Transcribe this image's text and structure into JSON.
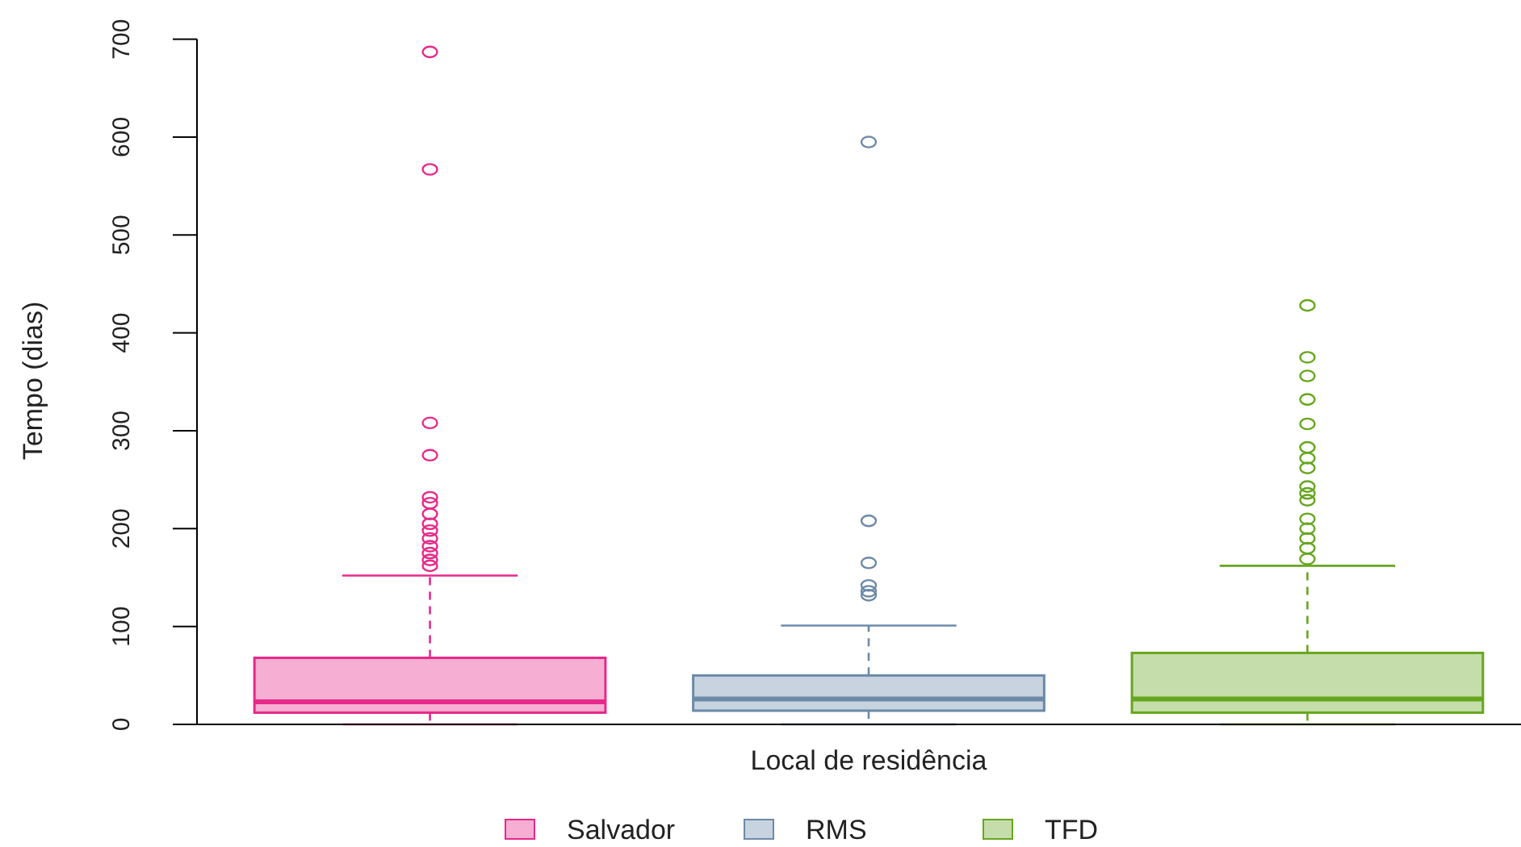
{
  "chart_data": {
    "type": "box",
    "xlabel": "Local de residência",
    "ylabel": "Tempo (dias)",
    "categories": [
      null,
      null,
      null
    ],
    "ylim": [
      0,
      700
    ],
    "yticks": [
      0,
      100,
      200,
      300,
      400,
      500,
      600,
      700
    ],
    "tick_labels": "y",
    "grid": false,
    "legend": "bottom",
    "series": [
      {
        "name": "Salvador",
        "color": "#e7298a",
        "boxes": [
          {
            "low": 0,
            "q1": 12,
            "median": 23,
            "q3": 68,
            "high": 152,
            "outliers": [
              687,
              567,
              308,
              275,
              232,
              226,
              215,
              205,
              198,
              190,
              182,
              175,
              168,
              162
            ]
          },
          null,
          null
        ]
      },
      {
        "name": "RMS",
        "color": "#6c8aa8",
        "boxes": [
          null,
          {
            "low": 0,
            "q1": 14,
            "median": 26,
            "q3": 50,
            "high": 101,
            "outliers": [
              595,
              208,
              165,
              142,
              136,
              132
            ]
          },
          null
        ]
      },
      {
        "name": "TFD",
        "color": "#66a61e",
        "boxes": [
          null,
          null,
          {
            "low": 0,
            "q1": 12,
            "median": 26,
            "q3": 73,
            "high": 162,
            "outliers": [
              428,
              375,
              356,
              332,
              307,
              283,
              272,
              262,
              243,
              236,
              229,
              210,
              200,
              190,
              180,
              169
            ]
          }
        ]
      }
    ]
  }
}
